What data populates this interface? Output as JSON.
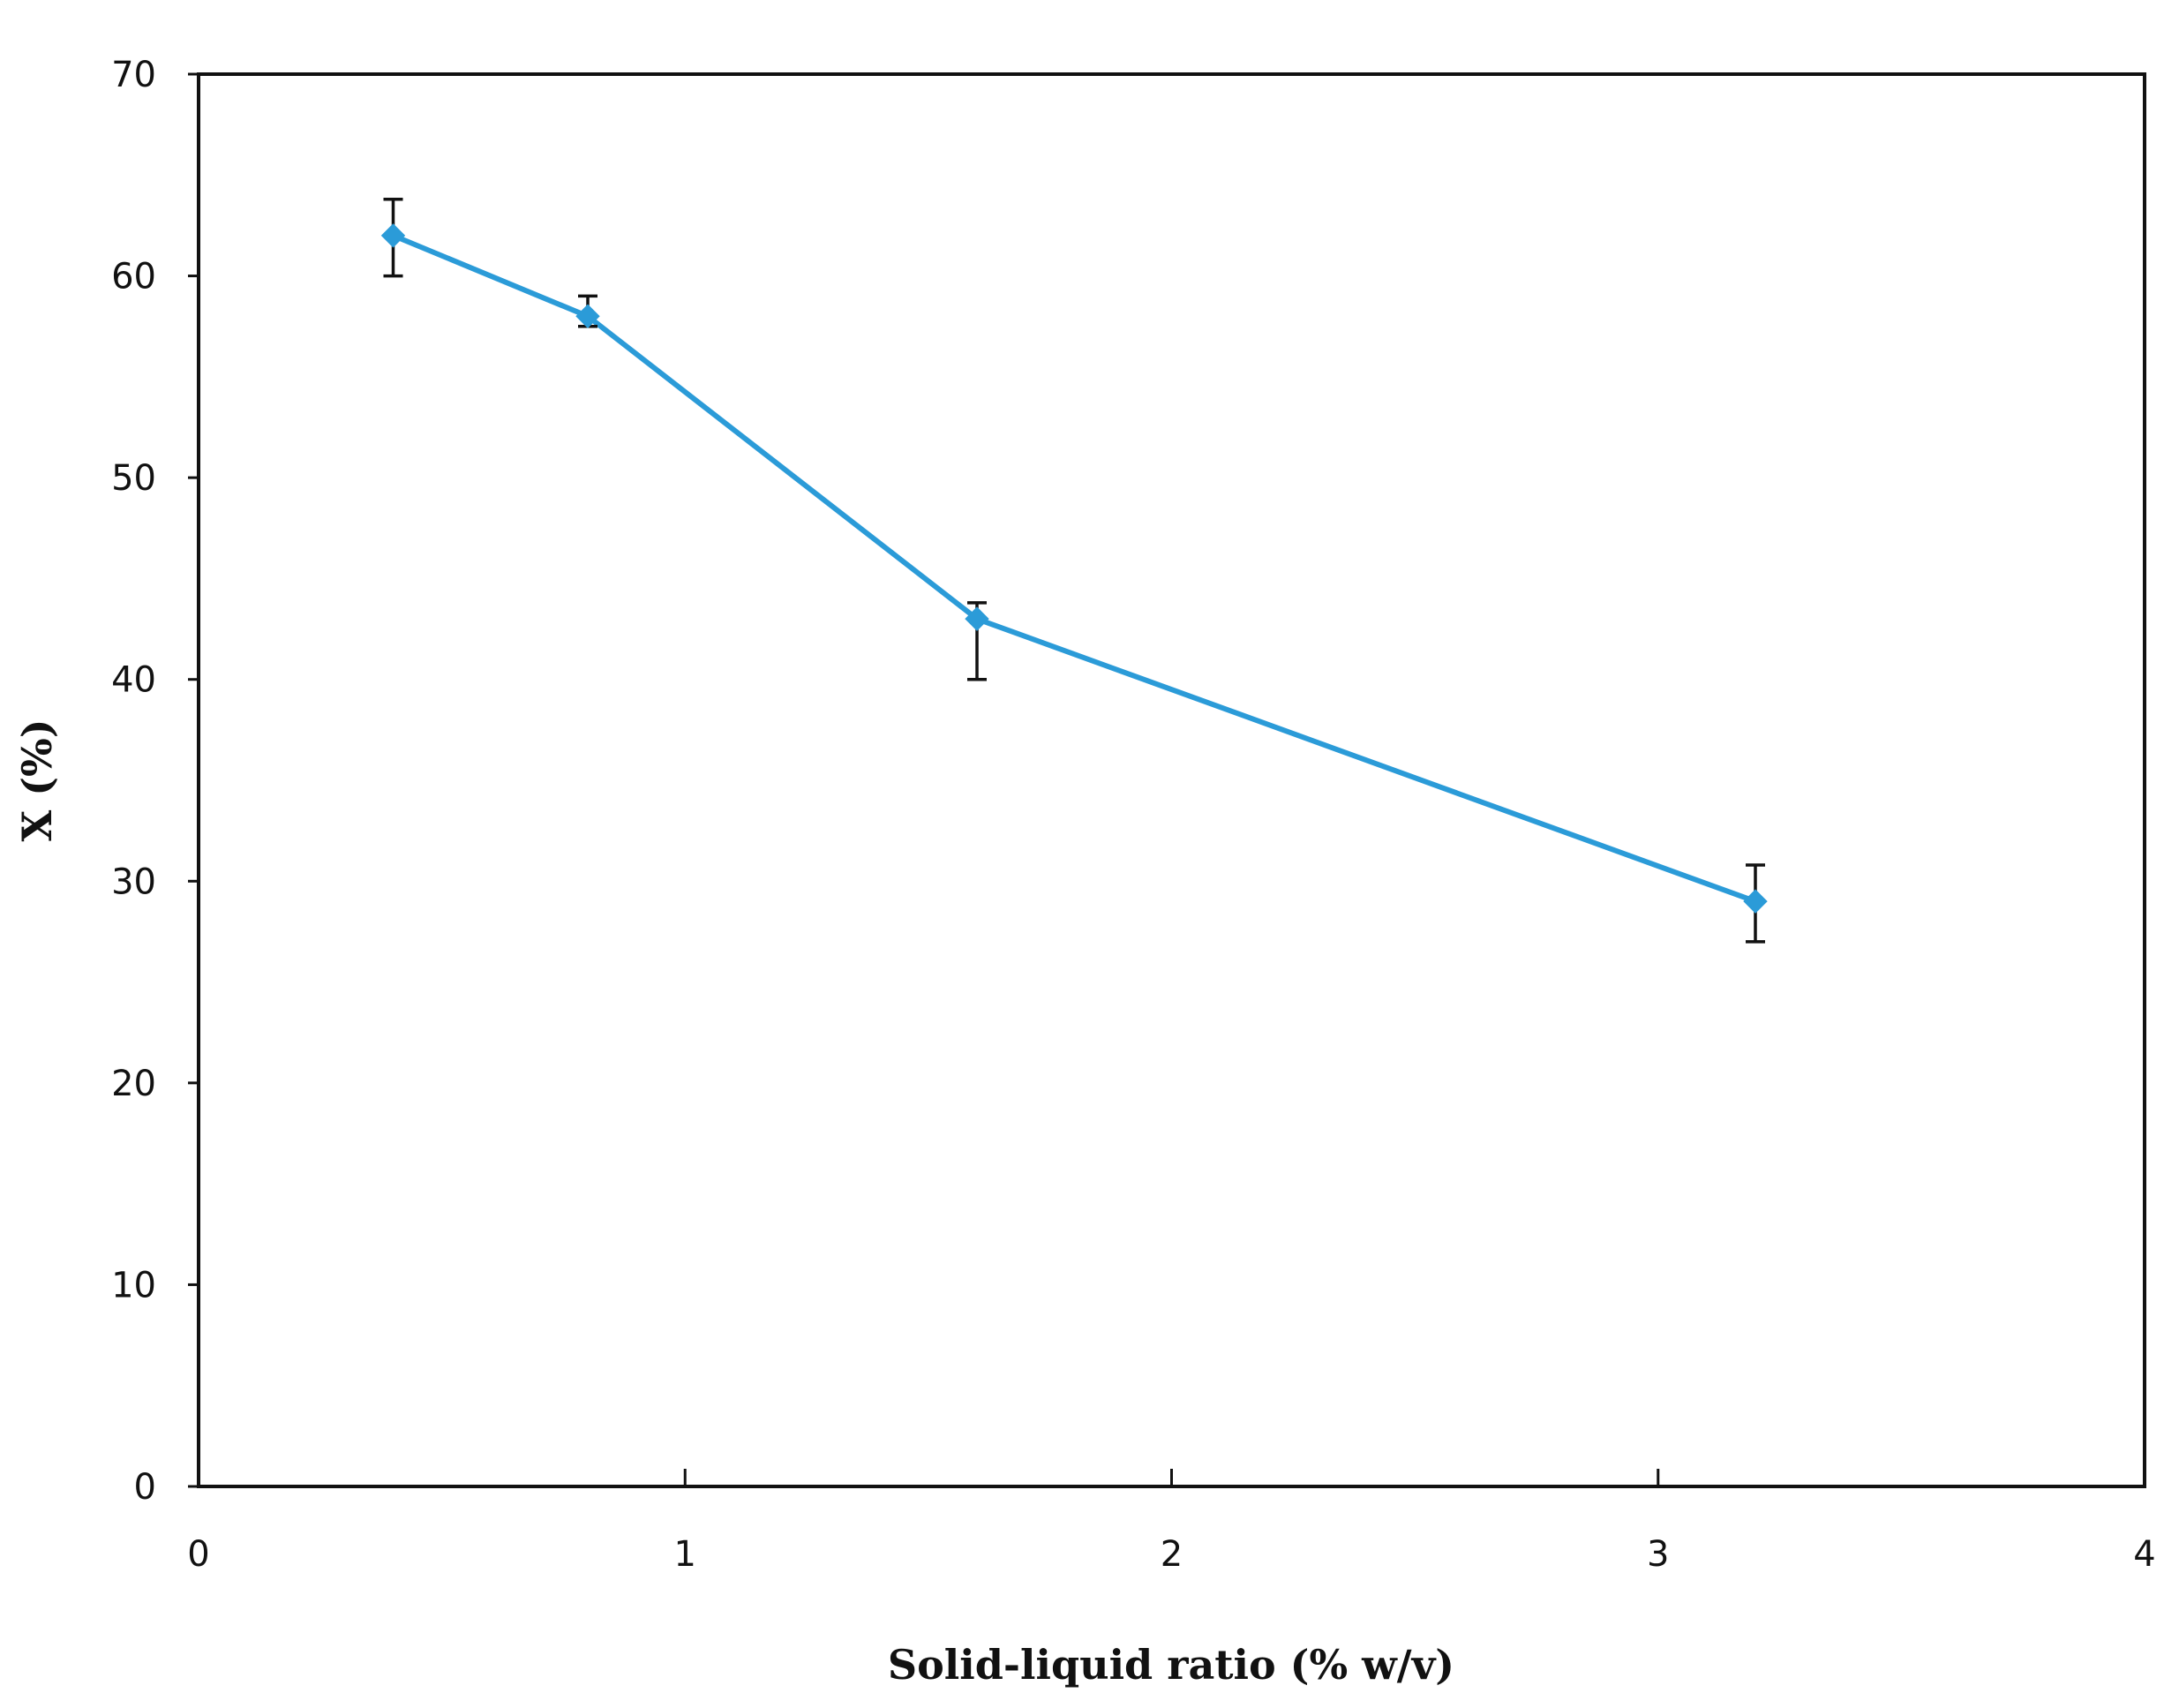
{
  "chart_data": {
    "type": "line",
    "title": "",
    "xlabel": "Solid-liquid  ratio (% w/v)",
    "ylabel": "X (%)",
    "xlim": [
      0,
      4
    ],
    "ylim": [
      0,
      70
    ],
    "x_ticks": [
      "0",
      "1",
      "2",
      "3",
      "4"
    ],
    "y_ticks": [
      "0",
      "10",
      "20",
      "30",
      "40",
      "50",
      "60",
      "70"
    ],
    "grid": false,
    "legend": "none",
    "series": [
      {
        "color": "#2b9bd8",
        "marker": "diamond",
        "x": [
          0.4,
          0.8,
          1.6,
          3.2
        ],
        "y": [
          62,
          58,
          43,
          29
        ],
        "error_low": [
          60,
          57.5,
          40,
          27
        ],
        "error_high": [
          63.8,
          59,
          43.8,
          30.8
        ]
      }
    ]
  }
}
